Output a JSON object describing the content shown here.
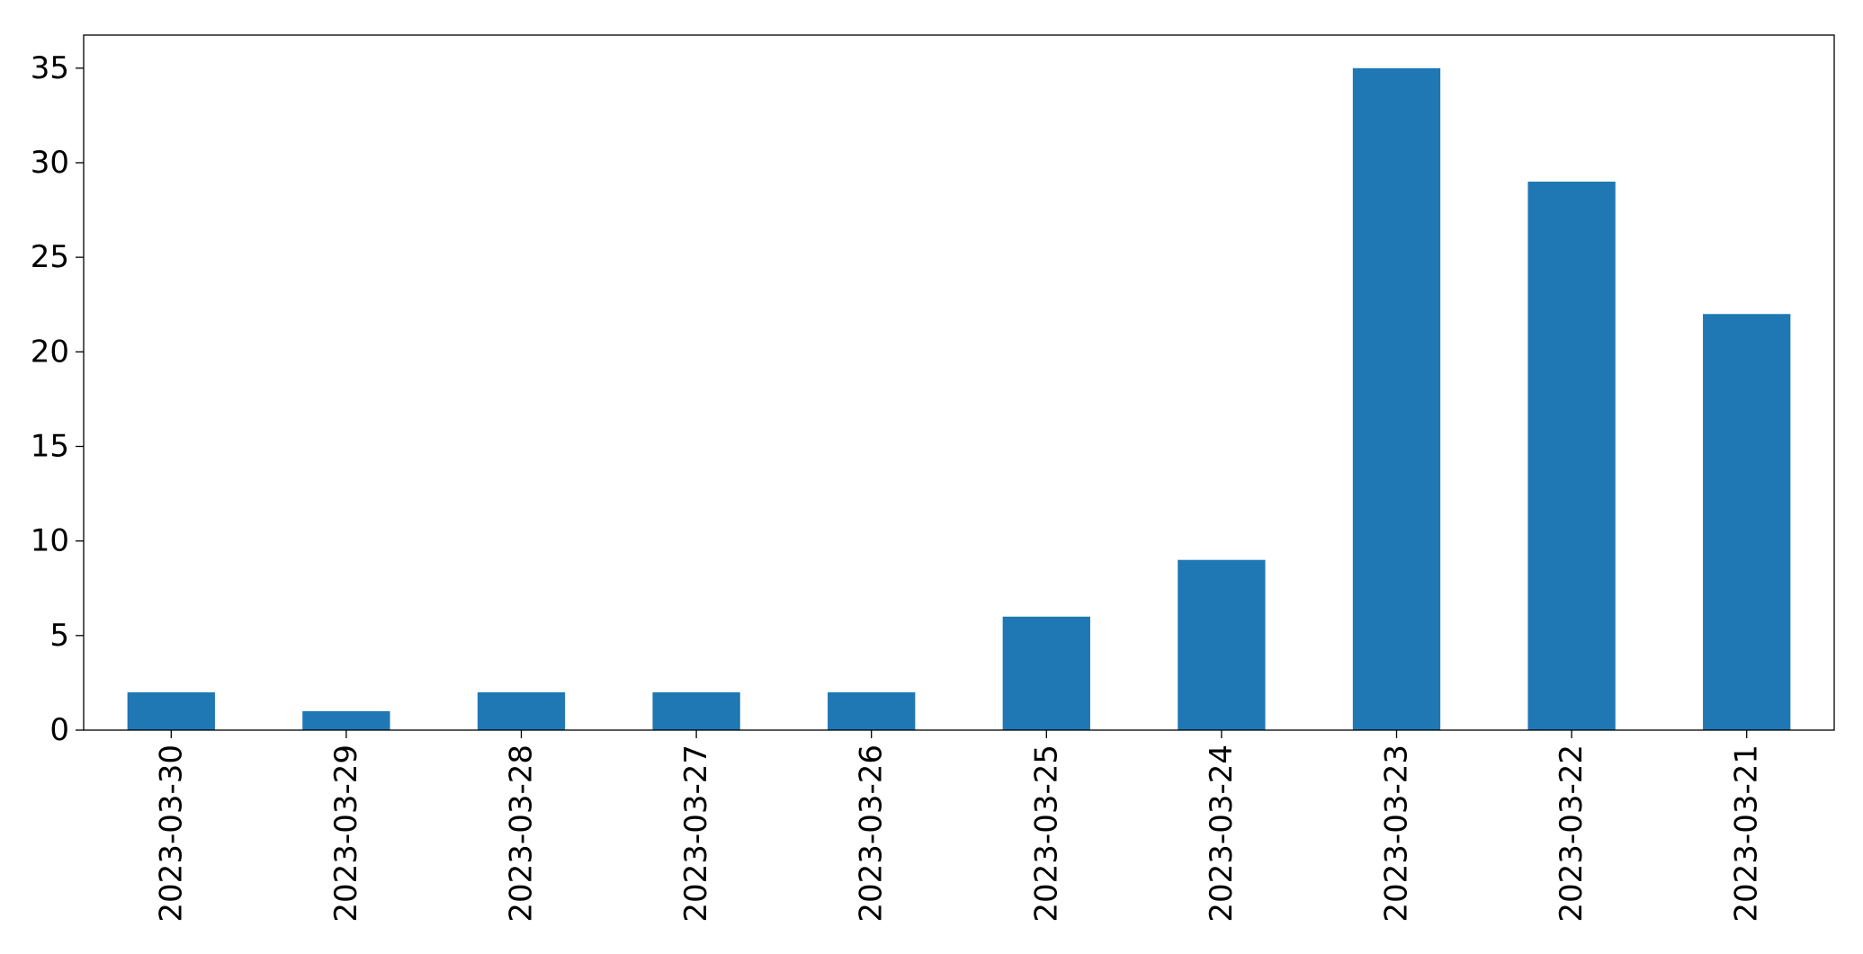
{
  "chart_data": {
    "type": "bar",
    "title": "",
    "xlabel": "",
    "ylabel": "",
    "categories": [
      "2023-03-30",
      "2023-03-29",
      "2023-03-28",
      "2023-03-27",
      "2023-03-26",
      "2023-03-25",
      "2023-03-24",
      "2023-03-23",
      "2023-03-22",
      "2023-03-21"
    ],
    "values": [
      2,
      1,
      2,
      2,
      2,
      6,
      9,
      35,
      29,
      22
    ],
    "ylim": [
      0,
      36.75
    ],
    "yticks": [
      0,
      5,
      10,
      15,
      20,
      25,
      30,
      35
    ],
    "grid": false,
    "legend": "none",
    "bar_color": "#1f77b4"
  }
}
